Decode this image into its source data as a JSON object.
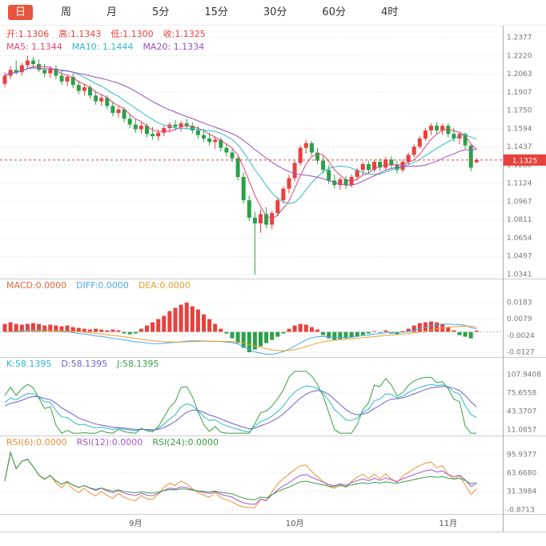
{
  "toolbar": {
    "tabs": [
      {
        "label": "日",
        "active": true
      },
      {
        "label": "周",
        "active": false
      },
      {
        "label": "月",
        "active": false
      },
      {
        "label": "5分",
        "active": false
      },
      {
        "label": "15分",
        "active": false
      },
      {
        "label": "30分",
        "active": false
      },
      {
        "label": "60分",
        "active": false
      },
      {
        "label": "4时",
        "active": false
      }
    ]
  },
  "colors": {
    "up": "#e8403c",
    "down": "#2ca049",
    "tab_active_bg": "#e8543c",
    "ma5": "#e0447a",
    "ma10": "#30b8c8",
    "ma20": "#9850b8",
    "macd_label": "#e06a35",
    "dif": "#4ba8e8",
    "dea": "#e8a030",
    "k": "#2fb8c8",
    "d": "#7060d0",
    "j": "#3aa045",
    "rsi6": "#e8913a",
    "rsi12": "#a855c8",
    "rsi24": "#3aa045",
    "grid": "#e4e4e4",
    "axis_text": "#777777",
    "month_text": "#555555"
  },
  "main": {
    "ohlc": {
      "open": "开:1.1306",
      "high": "高:1.1343",
      "low": "低:1.1300",
      "close": "收:1.1325"
    },
    "ma": {
      "ma5": "MA5: 1.1344",
      "ma10": "MA10: 1.1444",
      "ma20": "MA20: 1.1334"
    },
    "price_tag": "1.1325"
  },
  "macd": {
    "header": {
      "macd": "MACD:0.0000",
      "diff": "DIFF:0.0000",
      "dea": "DEA:0.0000"
    }
  },
  "kdj": {
    "header": {
      "k": "K:58.1395",
      "d": "D:58.1395",
      "j": "J:58.1395"
    }
  },
  "rsi": {
    "header": {
      "rsi6": "RSI(6):0.0000",
      "rsi12": "RSI(12):0.0000",
      "rsi24": "RSI(24):0.0000"
    }
  },
  "chart_data": {
    "type": "candlestick+indicators",
    "timeframe": "日",
    "current_price": 1.1325,
    "price_range": [
      1.0341,
      1.2377
    ],
    "price_axis_ticks": [
      "1.2377",
      "1.2220",
      "1.2063",
      "1.1907",
      "1.1750",
      "1.1594",
      "1.1437",
      "1.1280",
      "1.1124",
      "1.0967",
      "1.0811",
      "1.0654",
      "1.0497",
      "1.0341"
    ],
    "macd_axis_ticks": [
      "0.0183",
      "0.0079",
      "-0.0024",
      "-0.0127"
    ],
    "kdj_axis_ticks": [
      "107.9408",
      "75.6558",
      "43.3707",
      "11.0857"
    ],
    "rsi_axis_ticks": [
      "95.9377",
      "63.6680",
      "31.3984",
      "-0.8713"
    ],
    "x_labels": [
      {
        "label": "9月",
        "index": 23
      },
      {
        "label": "10月",
        "index": 51
      },
      {
        "label": "11月",
        "index": 78
      }
    ],
    "candles": [
      [
        1.198,
        1.208,
        1.195,
        1.205
      ],
      [
        1.205,
        1.213,
        1.202,
        1.21
      ],
      [
        1.21,
        1.218,
        1.206,
        1.208
      ],
      [
        1.208,
        1.216,
        1.205,
        1.214
      ],
      [
        1.214,
        1.222,
        1.211,
        1.218
      ],
      [
        1.218,
        1.221,
        1.212,
        1.215
      ],
      [
        1.215,
        1.219,
        1.208,
        1.21
      ],
      [
        1.21,
        1.215,
        1.204,
        1.207
      ],
      [
        1.207,
        1.213,
        1.203,
        1.211
      ],
      [
        1.211,
        1.214,
        1.202,
        1.205
      ],
      [
        1.205,
        1.209,
        1.197,
        1.2
      ],
      [
        1.2,
        1.206,
        1.196,
        1.204
      ],
      [
        1.204,
        1.207,
        1.194,
        1.197
      ],
      [
        1.197,
        1.201,
        1.189,
        1.192
      ],
      [
        1.192,
        1.198,
        1.188,
        1.195
      ],
      [
        1.195,
        1.197,
        1.185,
        1.188
      ],
      [
        1.188,
        1.192,
        1.18,
        1.183
      ],
      [
        1.183,
        1.189,
        1.179,
        1.186
      ],
      [
        1.186,
        1.188,
        1.176,
        1.179
      ],
      [
        1.179,
        1.183,
        1.17,
        1.173
      ],
      [
        1.173,
        1.179,
        1.169,
        1.176
      ],
      [
        1.176,
        1.178,
        1.165,
        1.168
      ],
      [
        1.168,
        1.172,
        1.16,
        1.163
      ],
      [
        1.163,
        1.168,
        1.156,
        1.159
      ],
      [
        1.159,
        1.165,
        1.155,
        1.162
      ],
      [
        1.162,
        1.164,
        1.152,
        1.155
      ],
      [
        1.155,
        1.161,
        1.15,
        1.153
      ],
      [
        1.153,
        1.159,
        1.149,
        1.156
      ],
      [
        1.156,
        1.162,
        1.153,
        1.16
      ],
      [
        1.16,
        1.165,
        1.156,
        1.163
      ],
      [
        1.163,
        1.167,
        1.158,
        1.161
      ],
      [
        1.161,
        1.166,
        1.157,
        1.164
      ],
      [
        1.164,
        1.168,
        1.159,
        1.162
      ],
      [
        1.162,
        1.165,
        1.155,
        1.158
      ],
      [
        1.158,
        1.162,
        1.151,
        1.154
      ],
      [
        1.154,
        1.159,
        1.148,
        1.151
      ],
      [
        1.151,
        1.156,
        1.145,
        1.148
      ],
      [
        1.148,
        1.153,
        1.142,
        1.15
      ],
      [
        1.15,
        1.152,
        1.14,
        1.143
      ],
      [
        1.143,
        1.147,
        1.136,
        1.139
      ],
      [
        1.139,
        1.142,
        1.131,
        1.134
      ],
      [
        1.134,
        1.136,
        1.115,
        1.118
      ],
      [
        1.118,
        1.122,
        1.095,
        1.098
      ],
      [
        1.098,
        1.102,
        1.08,
        1.083
      ],
      [
        1.083,
        1.088,
        1.0341,
        1.078
      ],
      [
        1.078,
        1.09,
        1.07,
        1.086
      ],
      [
        1.086,
        1.092,
        1.074,
        1.077
      ],
      [
        1.077,
        1.089,
        1.073,
        1.087
      ],
      [
        1.087,
        1.1,
        1.084,
        1.098
      ],
      [
        1.098,
        1.11,
        1.095,
        1.108
      ],
      [
        1.108,
        1.12,
        1.104,
        1.117
      ],
      [
        1.117,
        1.132,
        1.114,
        1.13
      ],
      [
        1.13,
        1.145,
        1.128,
        1.143
      ],
      [
        1.143,
        1.15,
        1.138,
        1.147
      ],
      [
        1.147,
        1.149,
        1.136,
        1.139
      ],
      [
        1.139,
        1.143,
        1.129,
        1.132
      ],
      [
        1.132,
        1.136,
        1.121,
        1.124
      ],
      [
        1.124,
        1.128,
        1.112,
        1.115
      ],
      [
        1.115,
        1.12,
        1.108,
        1.111
      ],
      [
        1.111,
        1.118,
        1.107,
        1.116
      ],
      [
        1.116,
        1.119,
        1.108,
        1.111
      ],
      [
        1.111,
        1.12,
        1.109,
        1.118
      ],
      [
        1.118,
        1.126,
        1.115,
        1.124
      ],
      [
        1.124,
        1.131,
        1.12,
        1.129
      ],
      [
        1.129,
        1.132,
        1.121,
        1.124
      ],
      [
        1.124,
        1.133,
        1.122,
        1.131
      ],
      [
        1.131,
        1.134,
        1.123,
        1.126
      ],
      [
        1.126,
        1.135,
        1.124,
        1.133
      ],
      [
        1.133,
        1.136,
        1.125,
        1.128
      ],
      [
        1.128,
        1.132,
        1.121,
        1.124
      ],
      [
        1.124,
        1.133,
        1.122,
        1.131
      ],
      [
        1.131,
        1.139,
        1.129,
        1.137
      ],
      [
        1.137,
        1.146,
        1.135,
        1.144
      ],
      [
        1.144,
        1.153,
        1.142,
        1.151
      ],
      [
        1.151,
        1.16,
        1.149,
        1.158
      ],
      [
        1.158,
        1.164,
        1.154,
        1.162
      ],
      [
        1.162,
        1.165,
        1.155,
        1.158
      ],
      [
        1.158,
        1.164,
        1.154,
        1.162
      ],
      [
        1.162,
        1.164,
        1.152,
        1.155
      ],
      [
        1.155,
        1.16,
        1.148,
        1.151
      ],
      [
        1.151,
        1.157,
        1.146,
        1.155
      ],
      [
        1.155,
        1.156,
        1.142,
        1.145
      ],
      [
        1.145,
        1.147,
        1.123,
        1.126
      ],
      [
        1.1306,
        1.1343,
        1.13,
        1.1325
      ]
    ],
    "macd_hist": [
      0.005,
      0.006,
      0.005,
      0.0045,
      0.005,
      0.0055,
      0.005,
      0.004,
      0.0045,
      0.004,
      0.0035,
      0.004,
      0.003,
      0.0025,
      0.002,
      0.0015,
      0.002,
      0.0015,
      0.001,
      0.0015,
      0.001,
      -0.001,
      -0.0015,
      -0.001,
      0.002,
      0.004,
      0.006,
      0.008,
      0.01,
      0.013,
      0.015,
      0.017,
      0.0183,
      0.016,
      0.014,
      0.011,
      0.008,
      0.005,
      0.002,
      -0.001,
      -0.004,
      -0.007,
      -0.01,
      -0.0127,
      -0.011,
      -0.009,
      -0.007,
      -0.005,
      -0.003,
      -0.001,
      0.002,
      0.004,
      0.005,
      0.0045,
      0.003,
      0.0015,
      -0.002,
      -0.004,
      -0.005,
      -0.0045,
      -0.004,
      -0.0035,
      -0.003,
      -0.002,
      -0.001,
      0.0005,
      -0.0005,
      0.001,
      -0.001,
      -0.0015,
      0.0005,
      0.002,
      0.004,
      0.0055,
      0.006,
      0.0065,
      0.006,
      0.005,
      0.003,
      0.001,
      -0.002,
      -0.003,
      -0.004,
      0.0008
    ]
  }
}
